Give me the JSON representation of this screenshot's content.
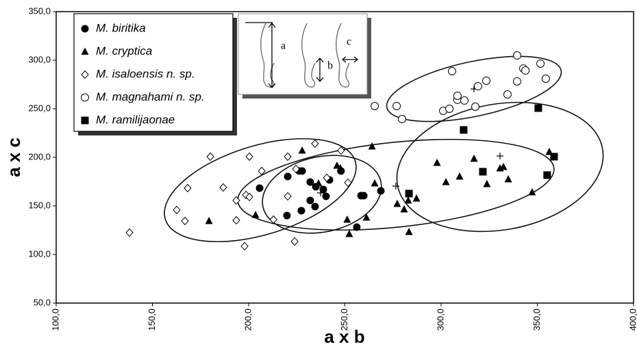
{
  "chart_data": {
    "type": "scatter",
    "x_label": "a x b",
    "y_label": "a x c",
    "xlim": [
      100,
      400
    ],
    "ylim": [
      50,
      350
    ],
    "xticks": [
      {
        "value": 100,
        "label": "100,0"
      },
      {
        "value": 150,
        "label": "150,0"
      },
      {
        "value": 200,
        "label": "200,0"
      },
      {
        "value": 250,
        "label": "250,0"
      },
      {
        "value": 300,
        "label": "300,0"
      },
      {
        "value": 350,
        "label": "350,0"
      },
      {
        "value": 400,
        "label": "400,0"
      }
    ],
    "yticks": [
      {
        "value": 50,
        "label": "50,0"
      },
      {
        "value": 100,
        "label": "100,0"
      },
      {
        "value": 150,
        "label": "150,0"
      },
      {
        "value": 200,
        "label": "200,0"
      },
      {
        "value": 250,
        "label": "250,0"
      },
      {
        "value": 300,
        "label": "300,0"
      },
      {
        "value": 350,
        "label": "350,0"
      }
    ],
    "inset_labels": [
      "a",
      "b",
      "c"
    ],
    "series": [
      {
        "name": "M. biritika",
        "color": "#000000",
        "marker": "circle",
        "x": [
          205.7,
          220.3,
          226.3,
          227.8,
          219.9,
          227.4,
          232.0,
          234.9,
          242.0,
          238.8,
          240.2,
          232.0,
          234.5,
          248.0,
          258.4,
          259.8,
          268.7,
          256.2
        ],
        "values": [
          168.3,
          180.3,
          185.9,
          185.9,
          140.1,
          145.1,
          174.6,
          169.7,
          176.8,
          166.9,
          159.9,
          155.6,
          149.3,
          185.9,
          160.6,
          160.6,
          165.5,
          128.2
        ]
      },
      {
        "name": "M. cryptica",
        "color": "#000000",
        "marker": "triangle",
        "x": [
          179.4,
          203.6,
          227.8,
          236.3,
          245.9,
          247.7,
          264.1,
          265.5,
          251.2,
          252.3,
          261.2,
          277.2,
          280.8,
          282.9,
          287.2,
          283.3,
          297.9,
          302.5,
          309.6,
          317.1,
          323.8,
          332.4,
          334.9,
          330.6,
          347.3,
          356.2
        ],
        "values": [
          134.5,
          140.8,
          207.0,
          173.2,
          191.5,
          188.7,
          211.3,
          173.2,
          135.9,
          121.1,
          138.0,
          152.1,
          146.5,
          155.6,
          157.7,
          123.2,
          194.4,
          174.6,
          180.3,
          198.6,
          172.5,
          190.1,
          177.5,
          188.7,
          164.1,
          205.6
        ]
      },
      {
        "name": "M. isaloensis n. sp.",
        "color": "#000000",
        "marker": "diamond",
        "x": [
          138.1,
          162.6,
          166.9,
          168.3,
          180.1,
          186.8,
          193.6,
          193.6,
          197.9,
          198.6,
          200.4,
          200.4,
          206.8,
          212.9,
          220.3,
          220.3,
          223.9,
          224.6,
          234.5,
          240.6,
          248.0,
          251.6
        ],
        "values": [
          122.5,
          145.8,
          134.5,
          168.3,
          200.7,
          169.0,
          135.2,
          155.6,
          108.5,
          161.3,
          200.7,
          159.2,
          185.9,
          135.9,
          200.7,
          159.9,
          113.4,
          188.0,
          214.1,
          178.9,
          207.0,
          173.9
        ]
      },
      {
        "name": "M. magnahami n. sp.",
        "color": "#000000",
        "marker": "open-circle",
        "x": [
          265.5,
          276.9,
          279.7,
          301.1,
          304.3,
          305.7,
          308.5,
          308.5,
          312.1,
          317.8,
          319.2,
          323.5,
          334.5,
          339.5,
          339.5,
          342.7,
          343.8,
          351.6,
          354.4
        ],
        "values": [
          252.8,
          252.8,
          239.4,
          247.9,
          250.0,
          288.7,
          259.2,
          263.4,
          258.5,
          252.1,
          273.2,
          278.9,
          264.8,
          304.9,
          278.2,
          291.5,
          289.4,
          296.5,
          281.0
        ]
      },
      {
        "name": "M. ramilijaonae",
        "color": "#000000",
        "marker": "square",
        "x": [
          283.3,
          311.7,
          321.7,
          350.5,
          355.1,
          358.7
        ],
        "values": [
          162.7,
          228.2,
          185.2,
          250.7,
          181.7,
          200.7
        ]
      }
    ]
  }
}
